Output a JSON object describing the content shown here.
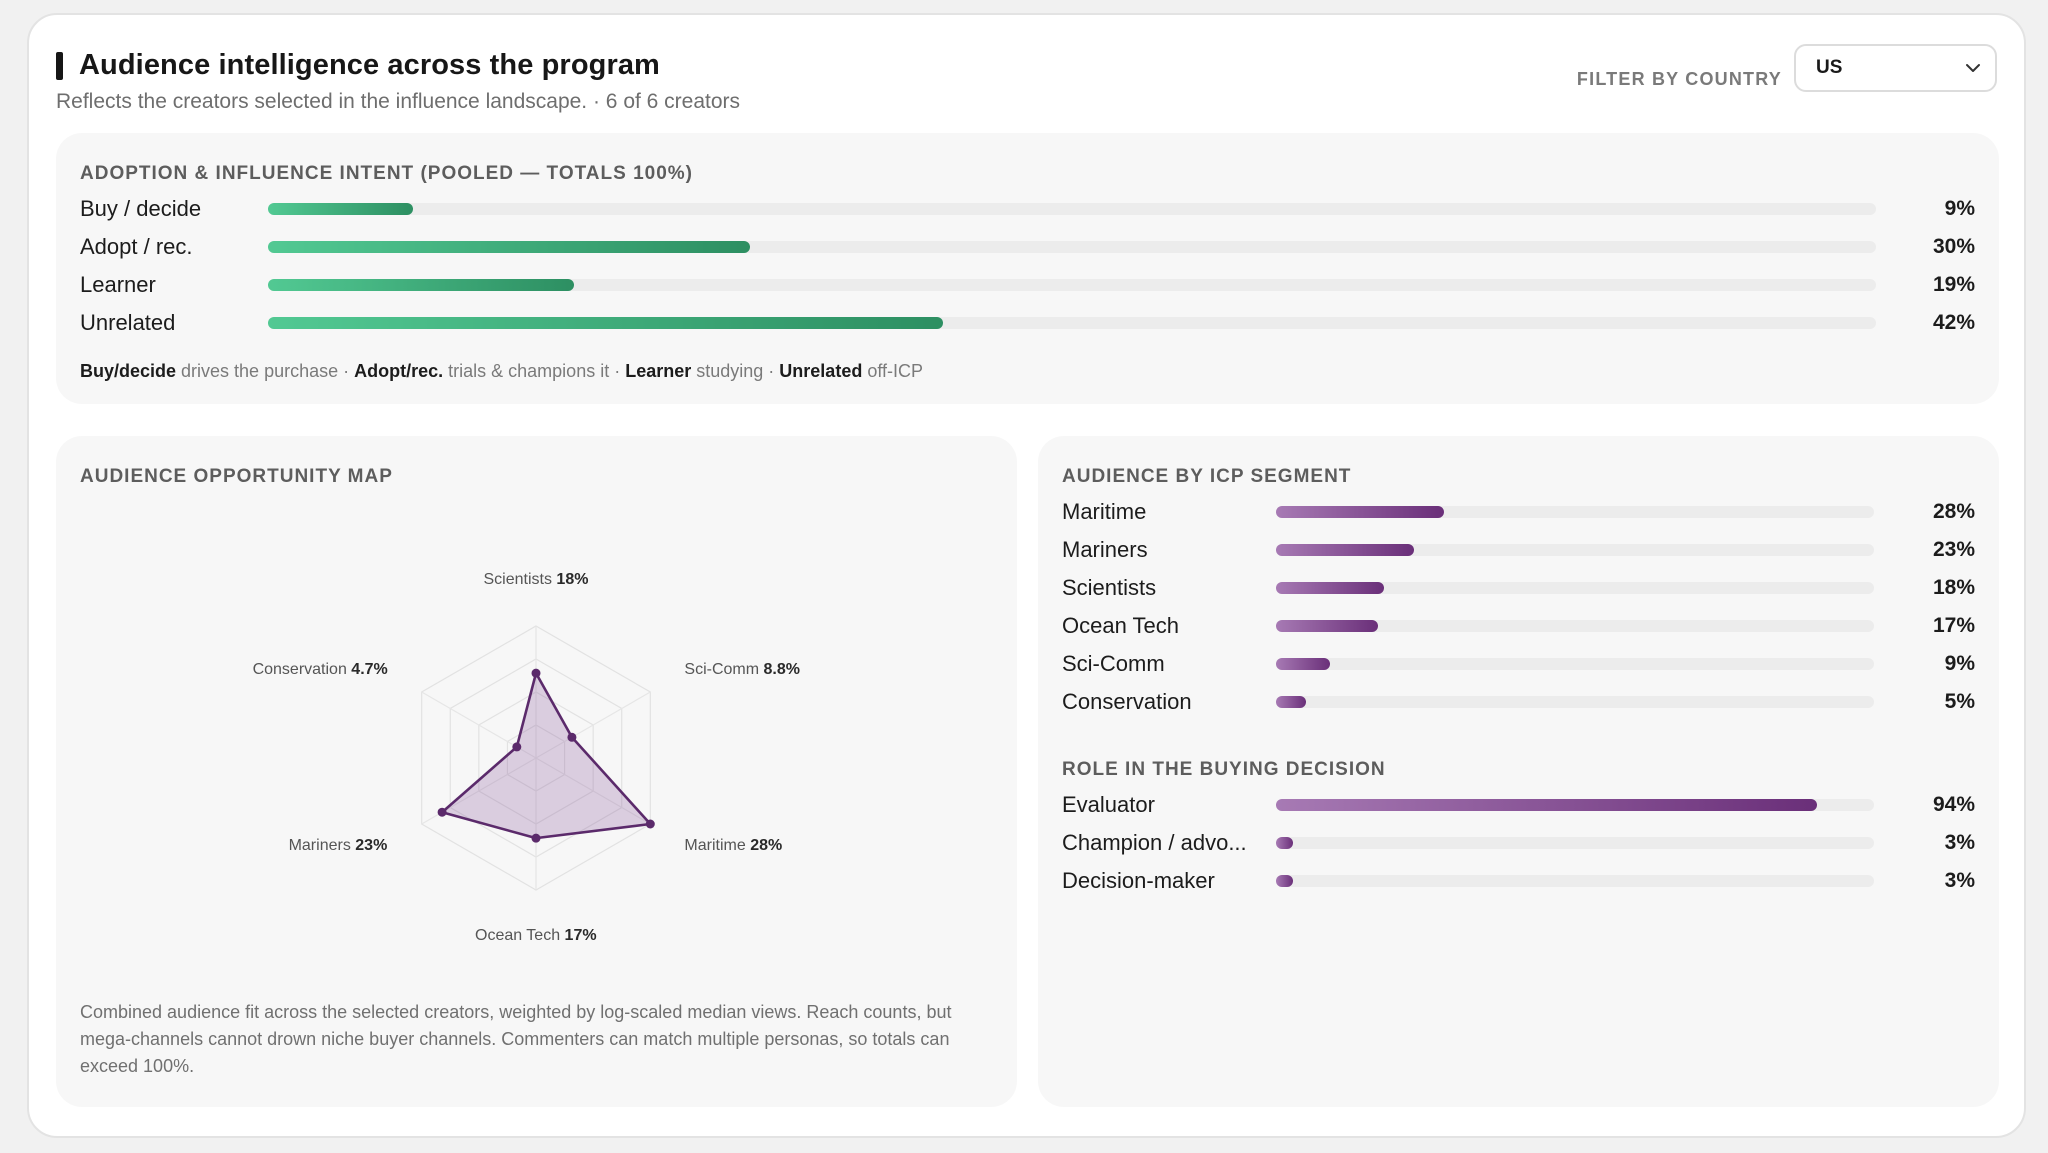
{
  "header": {
    "title": "Audience intelligence across the program",
    "subtitle": "Reflects the creators selected in the influence landscape. · 6 of 6 creators",
    "filter_label": "FILTER BY COUNTRY",
    "filter_value": "US"
  },
  "intent": {
    "heading": "ADOPTION & INFLUENCE INTENT (POOLED — TOTALS 100%)",
    "rows": [
      {
        "label": "Buy / decide",
        "value": "9%",
        "pct": 9
      },
      {
        "label": "Adopt / rec.",
        "value": "30%",
        "pct": 30
      },
      {
        "label": "Learner",
        "value": "19%",
        "pct": 19
      },
      {
        "label": "Unrelated",
        "value": "42%",
        "pct": 42
      }
    ],
    "legend": [
      {
        "term": "Buy/decide",
        "desc": "drives the purchase"
      },
      {
        "term": "Adopt/rec.",
        "desc": "trials & champions it"
      },
      {
        "term": "Learner",
        "desc": "studying"
      },
      {
        "term": "Unrelated",
        "desc": "off-ICP"
      }
    ],
    "legend_sep": " · ",
    "color": "#3aa876"
  },
  "opportunity": {
    "heading": "AUDIENCE OPPORTUNITY MAP",
    "footnote": "Combined audience fit across the selected creators, weighted by log-scaled median views. Reach counts, but mega-channels cannot drown niche buyer channels. Commenters can match multiple personas, so totals can exceed 100%.",
    "axes": [
      {
        "name": "Scientists",
        "value": "18%",
        "pct": 18
      },
      {
        "name": "Sci-Comm",
        "value": "8.8%",
        "pct": 8.8
      },
      {
        "name": "Maritime",
        "value": "28%",
        "pct": 28
      },
      {
        "name": "Ocean Tech",
        "value": "17%",
        "pct": 17
      },
      {
        "name": "Mariners",
        "value": "23%",
        "pct": 23
      },
      {
        "name": "Conservation",
        "value": "4.7%",
        "pct": 4.7
      }
    ],
    "scale_max": 28,
    "color": "#5b2a6b"
  },
  "icp": {
    "heading": "AUDIENCE BY ICP SEGMENT",
    "rows": [
      {
        "label": "Maritime",
        "value": "28%",
        "pct": 28
      },
      {
        "label": "Mariners",
        "value": "23%",
        "pct": 23
      },
      {
        "label": "Scientists",
        "value": "18%",
        "pct": 18
      },
      {
        "label": "Ocean Tech",
        "value": "17%",
        "pct": 17
      },
      {
        "label": "Sci-Comm",
        "value": "9%",
        "pct": 9
      },
      {
        "label": "Conservation",
        "value": "5%",
        "pct": 5
      }
    ],
    "color": "#7a3f8a"
  },
  "role": {
    "heading": "ROLE IN THE BUYING DECISION",
    "rows": [
      {
        "label": "Evaluator",
        "value": "94%",
        "pct": 94
      },
      {
        "label": "Champion / advo...",
        "value": "3%",
        "pct": 3
      },
      {
        "label": "Decision-maker",
        "value": "3%",
        "pct": 3
      }
    ]
  }
}
